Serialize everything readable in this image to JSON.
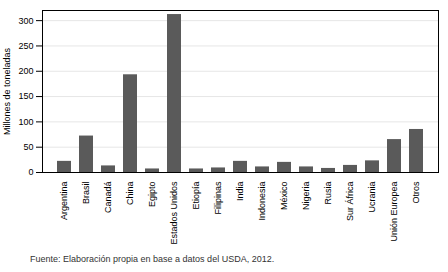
{
  "chart_data": {
    "type": "bar",
    "categories": [
      "Argentina",
      "Brasil",
      "Canadá",
      "China",
      "Egipto",
      "Estados Unidos",
      "Etiopía",
      "Filipinas",
      "India",
      "Indonesia",
      "México",
      "Nigeria",
      "Rusia",
      "Sur África",
      "Ucrania",
      "Unión Europea",
      "Otros"
    ],
    "values": [
      22,
      72,
      13,
      193,
      7,
      312,
      7,
      9,
      22,
      11,
      20,
      11,
      8,
      14,
      23,
      65,
      85
    ],
    "color": "#5a5a5a",
    "ylabel": "Millones de toneladas",
    "ylim": [
      0,
      320
    ],
    "yticks": [
      0,
      50,
      100,
      150,
      200,
      250,
      300
    ],
    "grid": true,
    "caption": "Fuente: Elaboración propia en base a datos del USDA, 2012."
  }
}
